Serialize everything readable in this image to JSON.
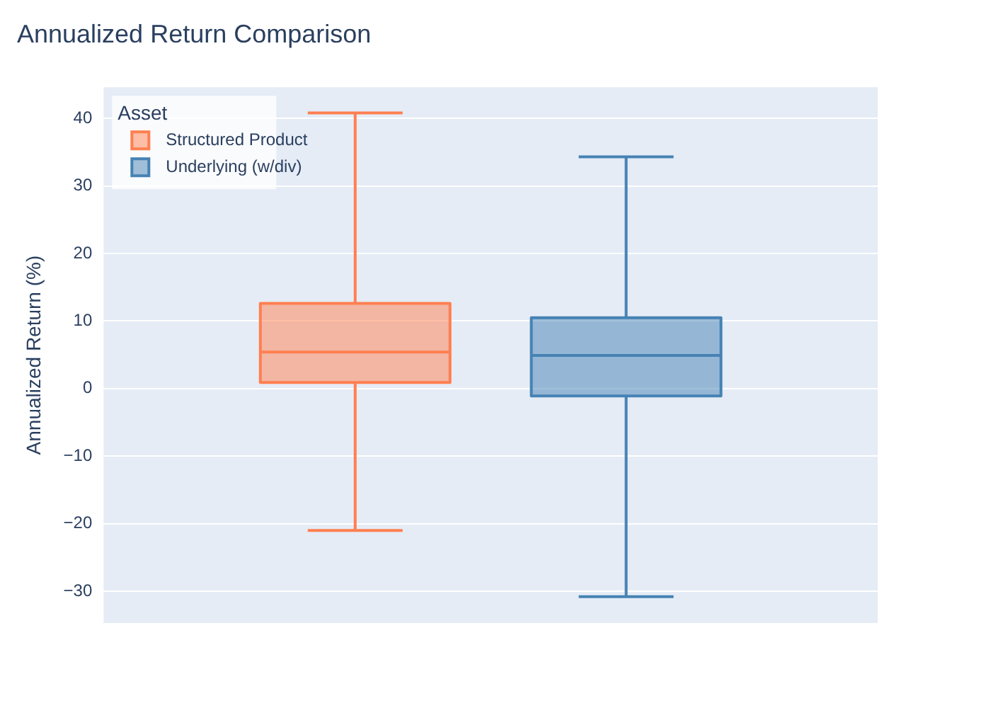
{
  "chart_data": {
    "type": "box",
    "title": "Annualized Return Comparison",
    "ylabel": "Annualized Return (%)",
    "legend_title": "Asset",
    "categories": [
      null
    ],
    "series": [
      {
        "name": "Structured Product",
        "color": "#ff7f50",
        "boxes": [
          {
            "low": -21.0,
            "q1": 0.9,
            "median": 5.4,
            "q3": 12.6,
            "high": 40.8
          }
        ]
      },
      {
        "name": "Underlying (w/div)",
        "color": "#4682b4",
        "boxes": [
          {
            "low": -30.8,
            "q1": -1.1,
            "median": 4.9,
            "q3": 10.5,
            "high": 34.3
          }
        ]
      }
    ],
    "ylim": [
      -34.7,
      44.6
    ],
    "yticks": [
      {
        "value": -30,
        "label": "−30"
      },
      {
        "value": -20,
        "label": "−20"
      },
      {
        "value": -10,
        "label": "−10"
      },
      0,
      10,
      20,
      30,
      40
    ],
    "grid": "y",
    "legend": "top left"
  }
}
